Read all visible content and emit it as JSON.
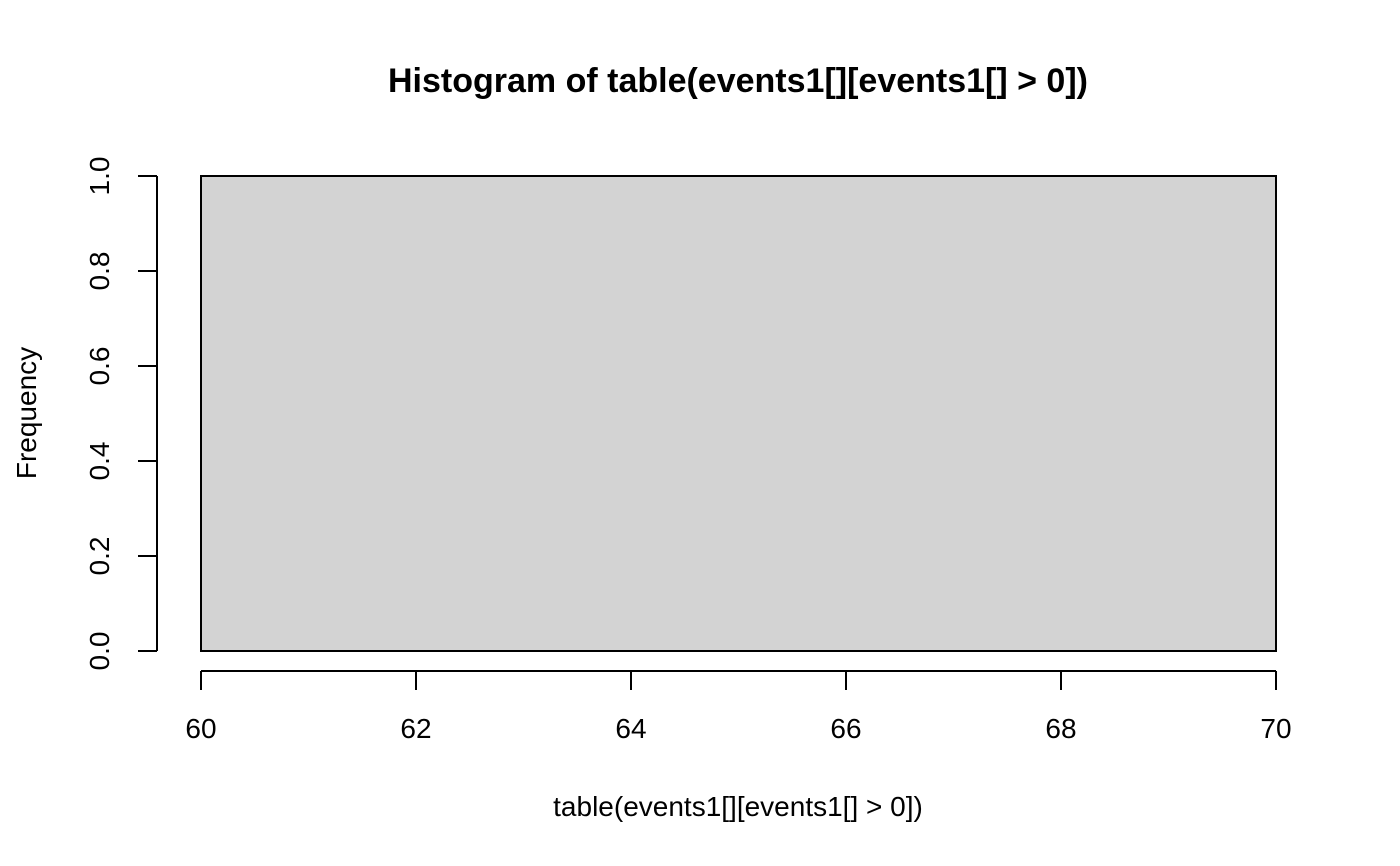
{
  "chart_data": {
    "type": "bar",
    "title": "Histogram of table(events1[][events1[] > 0])",
    "xlabel": "table(events1[][events1[] > 0])",
    "ylabel": "Frequency",
    "bins": [
      {
        "x0": 60,
        "x1": 70,
        "count": 1
      }
    ],
    "xlim": [
      60,
      70
    ],
    "ylim": [
      0,
      1
    ],
    "x_ticks": [
      60,
      62,
      64,
      66,
      68,
      70
    ],
    "y_ticks": [
      0,
      0.2,
      0.4,
      0.6,
      0.8,
      1
    ],
    "x_tick_labels": [
      "60",
      "62",
      "64",
      "66",
      "68",
      "70"
    ],
    "y_tick_labels": [
      "0.0",
      "0.2",
      "0.4",
      "0.6",
      "0.8",
      "1.0"
    ],
    "grid": false,
    "bar_fill": "#d3d3d3",
    "bar_stroke": "#000000"
  }
}
